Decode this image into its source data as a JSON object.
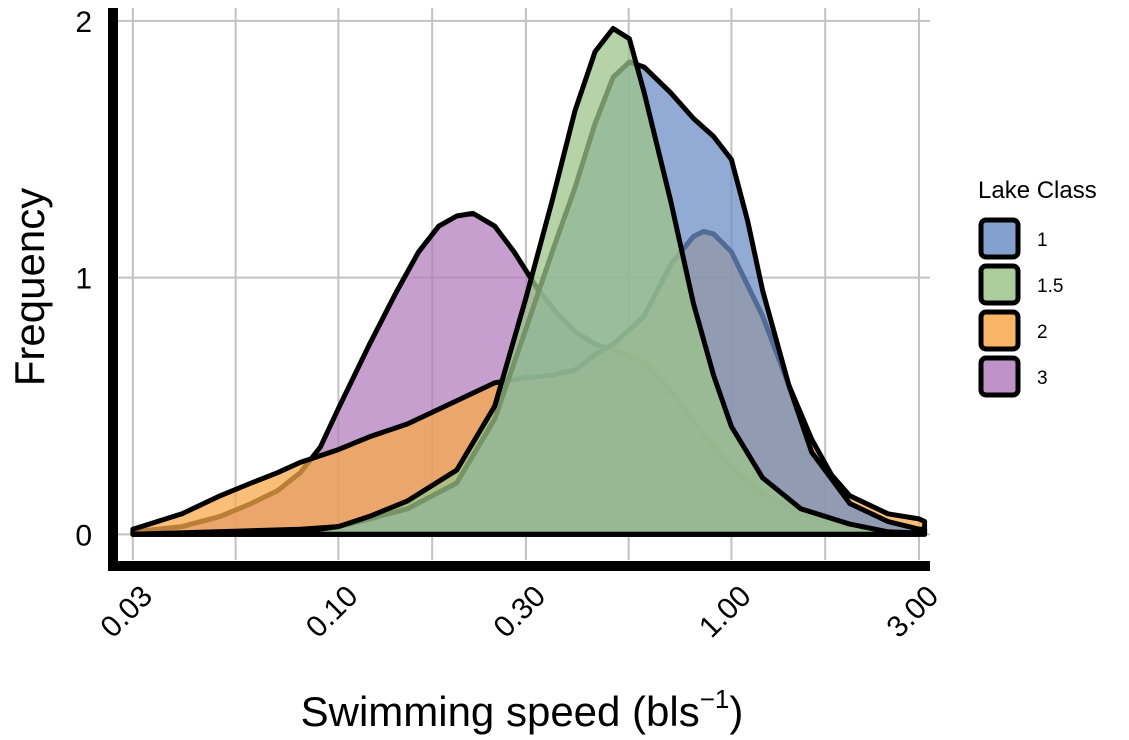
{
  "chart_data": {
    "type": "area",
    "subtype": "overlapping density",
    "xlabel": "Swimming speed (bls",
    "xlabel_superscript": "−1",
    "xlabel_suffix": ")",
    "ylabel": "Frequency",
    "x_scale": "log10",
    "xlim": [
      0.0275,
      3.2
    ],
    "ylim": [
      -0.1,
      2.05
    ],
    "x_ticks": [
      0.03,
      0.1,
      0.3,
      1.0,
      3.0
    ],
    "x_tick_labels": [
      "0.03",
      "0.10",
      "0.30",
      "1.00",
      "3.00"
    ],
    "y_ticks": [
      0,
      1,
      2
    ],
    "y_tick_labels": [
      "0",
      "1",
      "2"
    ],
    "grid": true,
    "legend_position": "right",
    "legend_title": "Lake Class",
    "series": [
      {
        "name": "3",
        "color": "#b37fbd",
        "points": [
          [
            0.03,
            0.01
          ],
          [
            0.04,
            0.03
          ],
          [
            0.05,
            0.07
          ],
          [
            0.06,
            0.12
          ],
          [
            0.07,
            0.17
          ],
          [
            0.08,
            0.24
          ],
          [
            0.09,
            0.34
          ],
          [
            0.1,
            0.49
          ],
          [
            0.12,
            0.74
          ],
          [
            0.14,
            0.94
          ],
          [
            0.16,
            1.1
          ],
          [
            0.18,
            1.2
          ],
          [
            0.2,
            1.24
          ],
          [
            0.22,
            1.25
          ],
          [
            0.25,
            1.2
          ],
          [
            0.28,
            1.1
          ],
          [
            0.32,
            0.96
          ],
          [
            0.36,
            0.86
          ],
          [
            0.4,
            0.79
          ],
          [
            0.45,
            0.74
          ],
          [
            0.5,
            0.72
          ],
          [
            0.6,
            0.67
          ],
          [
            0.7,
            0.56
          ],
          [
            0.8,
            0.44
          ],
          [
            0.9,
            0.34
          ],
          [
            1.0,
            0.26
          ],
          [
            1.2,
            0.16
          ],
          [
            1.5,
            0.08
          ],
          [
            2.0,
            0.03
          ],
          [
            2.5,
            0.01
          ],
          [
            3.0,
            0.005
          ]
        ]
      },
      {
        "name": "2",
        "color": "#f7a84a",
        "points": [
          [
            0.03,
            0.02
          ],
          [
            0.04,
            0.08
          ],
          [
            0.05,
            0.15
          ],
          [
            0.06,
            0.2
          ],
          [
            0.07,
            0.24
          ],
          [
            0.08,
            0.28
          ],
          [
            0.1,
            0.33
          ],
          [
            0.12,
            0.38
          ],
          [
            0.15,
            0.43
          ],
          [
            0.2,
            0.52
          ],
          [
            0.25,
            0.59
          ],
          [
            0.3,
            0.61
          ],
          [
            0.35,
            0.62
          ],
          [
            0.4,
            0.64
          ],
          [
            0.45,
            0.7
          ],
          [
            0.5,
            0.74
          ],
          [
            0.6,
            0.85
          ],
          [
            0.7,
            1.05
          ],
          [
            0.8,
            1.16
          ],
          [
            0.85,
            1.18
          ],
          [
            0.9,
            1.17
          ],
          [
            1.0,
            1.1
          ],
          [
            1.2,
            0.85
          ],
          [
            1.4,
            0.58
          ],
          [
            1.6,
            0.37
          ],
          [
            1.8,
            0.23
          ],
          [
            2.0,
            0.15
          ],
          [
            2.5,
            0.08
          ],
          [
            3.0,
            0.06
          ],
          [
            3.1,
            0.05
          ]
        ]
      },
      {
        "name": "1",
        "color": "#6e8fc6",
        "points": [
          [
            0.03,
            0.0
          ],
          [
            0.08,
            0.02
          ],
          [
            0.1,
            0.03
          ],
          [
            0.12,
            0.06
          ],
          [
            0.15,
            0.1
          ],
          [
            0.2,
            0.2
          ],
          [
            0.25,
            0.45
          ],
          [
            0.3,
            0.8
          ],
          [
            0.35,
            1.1
          ],
          [
            0.4,
            1.35
          ],
          [
            0.45,
            1.6
          ],
          [
            0.5,
            1.78
          ],
          [
            0.55,
            1.84
          ],
          [
            0.6,
            1.82
          ],
          [
            0.7,
            1.72
          ],
          [
            0.8,
            1.62
          ],
          [
            0.9,
            1.55
          ],
          [
            1.0,
            1.46
          ],
          [
            1.1,
            1.22
          ],
          [
            1.2,
            0.95
          ],
          [
            1.4,
            0.58
          ],
          [
            1.6,
            0.32
          ],
          [
            2.0,
            0.12
          ],
          [
            2.5,
            0.05
          ],
          [
            3.0,
            0.02
          ],
          [
            3.1,
            0.02
          ]
        ]
      },
      {
        "name": "1.5",
        "color": "#9cc48a",
        "points": [
          [
            0.03,
            0.0
          ],
          [
            0.08,
            0.01
          ],
          [
            0.1,
            0.03
          ],
          [
            0.12,
            0.07
          ],
          [
            0.15,
            0.13
          ],
          [
            0.2,
            0.25
          ],
          [
            0.25,
            0.5
          ],
          [
            0.3,
            0.92
          ],
          [
            0.35,
            1.3
          ],
          [
            0.4,
            1.65
          ],
          [
            0.45,
            1.88
          ],
          [
            0.5,
            1.97
          ],
          [
            0.55,
            1.93
          ],
          [
            0.6,
            1.72
          ],
          [
            0.7,
            1.3
          ],
          [
            0.8,
            0.9
          ],
          [
            0.9,
            0.62
          ],
          [
            1.0,
            0.42
          ],
          [
            1.2,
            0.22
          ],
          [
            1.5,
            0.1
          ],
          [
            2.0,
            0.04
          ],
          [
            2.5,
            0.01
          ],
          [
            3.0,
            0.005
          ]
        ]
      }
    ]
  }
}
